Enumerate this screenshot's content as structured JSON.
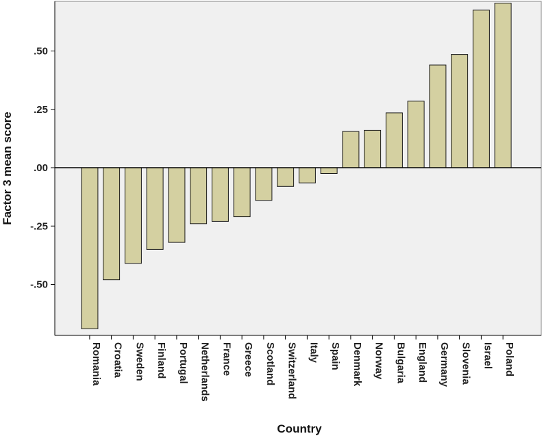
{
  "chart_data": {
    "type": "bar",
    "title": "",
    "xlabel": "Country",
    "ylabel": "Factor 3 mean score",
    "ylim": [
      -0.72,
      0.72
    ],
    "yticks": [
      -0.5,
      -0.25,
      0.0,
      0.25,
      0.5
    ],
    "ytick_labels": [
      "-.50",
      "-.25",
      ".00",
      ".25",
      ".50"
    ],
    "grid": false,
    "legend": "none",
    "categories": [
      "Romania",
      "Croatia",
      "Sweden",
      "Finland",
      "Portugal",
      "Netherlands",
      "France",
      "Greece",
      "Scotland",
      "Switzerland",
      "Italy",
      "Spain",
      "Denmark",
      "Norway",
      "Bulgaria",
      "England",
      "Germany",
      "Slovenia",
      "Israel",
      "Poland"
    ],
    "values": [
      -0.69,
      -0.48,
      -0.41,
      -0.35,
      -0.32,
      -0.24,
      -0.23,
      -0.21,
      -0.14,
      -0.08,
      -0.065,
      -0.025,
      0.155,
      0.16,
      0.235,
      0.285,
      0.44,
      0.485,
      0.675,
      0.705
    ],
    "colors": {
      "bar_fill": "#d4d0a1",
      "bar_stroke": "#1a1a1a",
      "plot_bg": "#f0f0f0",
      "axis": "#000000"
    }
  }
}
